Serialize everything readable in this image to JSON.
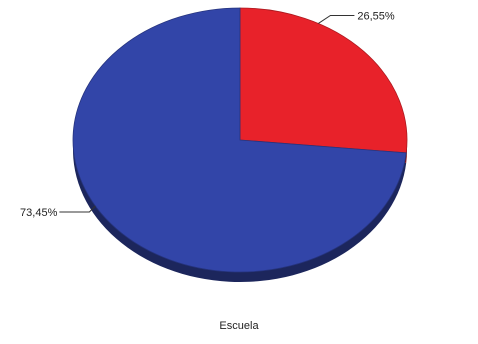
{
  "chart_data": {
    "type": "pie",
    "slices": [
      {
        "value": 26.55,
        "label": "26,55%",
        "color": "#e8222a"
      },
      {
        "value": 73.45,
        "label": "73,45%",
        "color": "#3245a8"
      }
    ],
    "xlabel": "Escuela",
    "style": "3d-tilted",
    "start": "12 o'clock, clockwise"
  }
}
